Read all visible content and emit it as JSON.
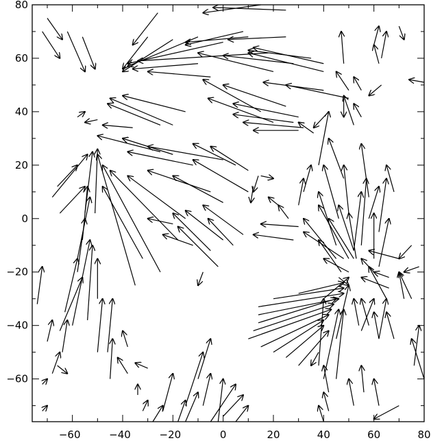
{
  "chart_data": {
    "type": "vector-field",
    "title": "",
    "xlabel": "",
    "ylabel": "",
    "xlim": [
      -76,
      80
    ],
    "ylim": [
      -76,
      80
    ],
    "xticks": [
      -60,
      -40,
      -20,
      0,
      20,
      40,
      60,
      80
    ],
    "yticks": [
      -60,
      -40,
      -20,
      0,
      20,
      40,
      60,
      80
    ],
    "xtick_labels": [
      "−60",
      "−40",
      "−20",
      "0",
      "20",
      "40",
      "60",
      "80"
    ],
    "ytick_labels": [
      "−60",
      "−40",
      "−20",
      "0",
      "20",
      "40",
      "60",
      "80"
    ],
    "grid": false,
    "line_color": "#000000",
    "background": "#ffffff",
    "vectors": [
      [
        -64,
        67,
        -70,
        75
      ],
      [
        -65,
        60,
        -72,
        70
      ],
      [
        -55,
        55,
        -62,
        70
      ],
      [
        -51,
        56,
        -56,
        68
      ],
      [
        -36,
        65,
        -26,
        77
      ],
      [
        -40,
        56,
        -30,
        68
      ],
      [
        -40,
        55,
        -20,
        67
      ],
      [
        -38,
        57,
        -10,
        68
      ],
      [
        -38,
        58,
        0,
        66
      ],
      [
        -34,
        59,
        18,
        62
      ],
      [
        -36,
        56,
        -10,
        58
      ],
      [
        -30,
        55,
        -5,
        53
      ],
      [
        -8,
        77,
        15,
        80
      ],
      [
        -4,
        79,
        25,
        78
      ],
      [
        -15,
        65,
        8,
        70
      ],
      [
        -15,
        66,
        10,
        68
      ],
      [
        2,
        67,
        25,
        68
      ],
      [
        10,
        62,
        40,
        55
      ],
      [
        0,
        61,
        28,
        58
      ],
      [
        -10,
        62,
        20,
        55
      ],
      [
        10,
        63,
        35,
        60
      ],
      [
        12,
        64,
        40,
        58
      ],
      [
        -8,
        52,
        15,
        40
      ],
      [
        -6,
        45,
        20,
        36
      ],
      [
        0,
        50,
        25,
        42
      ],
      [
        4,
        43,
        30,
        38
      ],
      [
        16,
        51,
        40,
        48
      ],
      [
        25,
        50,
        50,
        45
      ],
      [
        12,
        33,
        30,
        33
      ],
      [
        4,
        39,
        28,
        36
      ],
      [
        8,
        36,
        32,
        34
      ],
      [
        -45,
        45,
        -20,
        35
      ],
      [
        -40,
        46,
        -15,
        40
      ],
      [
        -46,
        43,
        -25,
        35
      ],
      [
        -48,
        35,
        -36,
        34
      ],
      [
        -55,
        36,
        -50,
        37
      ],
      [
        -50,
        31,
        -25,
        25
      ],
      [
        -40,
        30,
        -20,
        24
      ],
      [
        -38,
        25,
        -12,
        20
      ],
      [
        -30,
        27,
        0,
        22
      ],
      [
        -12,
        28,
        5,
        20
      ],
      [
        -5,
        27,
        10,
        18
      ],
      [
        -30,
        18,
        -5,
        10
      ],
      [
        -12,
        22,
        10,
        10
      ],
      [
        -20,
        16,
        0,
        6
      ],
      [
        -38,
        16,
        -15,
        0
      ],
      [
        -45,
        18,
        -18,
        -8
      ],
      [
        -48,
        20,
        -25,
        -20
      ],
      [
        -50,
        24,
        -35,
        -25
      ],
      [
        -48,
        12,
        -32,
        -15
      ],
      [
        -20,
        2,
        -5,
        -12
      ],
      [
        -18,
        -3,
        -2,
        -18
      ],
      [
        -15,
        3,
        0,
        -8
      ],
      [
        -8,
        5,
        8,
        -6
      ],
      [
        -55,
        12,
        -65,
        2
      ],
      [
        -54,
        24,
        -68,
        8
      ],
      [
        -58,
        20,
        -66,
        12
      ],
      [
        -52,
        25,
        -55,
        2
      ],
      [
        -54,
        12,
        -56,
        -8
      ],
      [
        -50,
        26,
        -51,
        2
      ],
      [
        -53,
        8,
        -58,
        -15
      ],
      [
        -53,
        -8,
        -60,
        -40
      ],
      [
        -55,
        0,
        -58,
        -20
      ],
      [
        -52,
        -10,
        -54,
        -38
      ],
      [
        -50,
        -15,
        -50,
        -30
      ],
      [
        -48,
        -30,
        -50,
        -50
      ],
      [
        -44,
        -30,
        -46,
        -50
      ],
      [
        -44,
        -45,
        -45,
        -60
      ],
      [
        -42,
        -52,
        -38,
        -58
      ],
      [
        -35,
        -54,
        -30,
        -56
      ],
      [
        -58,
        -15,
        -63,
        -35
      ],
      [
        -56,
        -22,
        -65,
        -42
      ],
      [
        -62,
        -38,
        -64,
        -50
      ],
      [
        -65,
        -50,
        -68,
        -58
      ],
      [
        -72,
        -18,
        -74,
        -32
      ],
      [
        -68,
        -38,
        -70,
        -46
      ],
      [
        -55,
        40,
        -58,
        38
      ],
      [
        30,
        36,
        36,
        32
      ],
      [
        36,
        34,
        42,
        40
      ],
      [
        42,
        40,
        38,
        20
      ],
      [
        48,
        46,
        52,
        35
      ],
      [
        52,
        43,
        55,
        38
      ],
      [
        58,
        46,
        63,
        50
      ],
      [
        60,
        65,
        62,
        58
      ],
      [
        65,
        70,
        63,
        60
      ],
      [
        47,
        70,
        48,
        58
      ],
      [
        62,
        72,
        60,
        65
      ],
      [
        72,
        67,
        70,
        72
      ],
      [
        74,
        52,
        80,
        51
      ],
      [
        52,
        53,
        55,
        48
      ],
      [
        45,
        55,
        50,
        48
      ],
      [
        48,
        38,
        48,
        45
      ],
      [
        55,
        10,
        52,
        -12
      ],
      [
        57,
        15,
        55,
        -10
      ],
      [
        62,
        12,
        58,
        0
      ],
      [
        65,
        15,
        62,
        -5
      ],
      [
        60,
        2,
        60,
        -15
      ],
      [
        66,
        0,
        62,
        -18
      ],
      [
        65,
        20,
        68,
        10
      ],
      [
        55,
        28,
        58,
        8
      ],
      [
        42,
        30,
        48,
        15
      ],
      [
        40,
        20,
        46,
        0
      ],
      [
        48,
        20,
        50,
        2
      ],
      [
        38,
        10,
        45,
        -10
      ],
      [
        32,
        15,
        30,
        5
      ],
      [
        35,
        20,
        32,
        10
      ],
      [
        32,
        -5,
        48,
        -15
      ],
      [
        32,
        0,
        45,
        -15
      ],
      [
        38,
        5,
        50,
        -15
      ],
      [
        40,
        -15,
        50,
        -20
      ],
      [
        42,
        0,
        52,
        -15
      ],
      [
        46,
        5,
        52,
        -12
      ],
      [
        50,
        2,
        53,
        -15
      ],
      [
        38,
        -8,
        47,
        -20
      ],
      [
        12,
        -6,
        28,
        -8
      ],
      [
        15,
        -2,
        30,
        -3
      ],
      [
        22,
        5,
        26,
        0
      ],
      [
        18,
        8,
        22,
        5
      ],
      [
        20,
        15,
        15,
        16
      ],
      [
        12,
        10,
        14,
        16
      ],
      [
        11,
        6,
        12,
        12
      ],
      [
        70,
        -15,
        75,
        -10
      ],
      [
        72,
        -20,
        78,
        -18
      ],
      [
        70,
        -20,
        75,
        -30
      ],
      [
        60,
        -20,
        66,
        -22
      ],
      [
        58,
        -18,
        65,
        -30
      ],
      [
        55,
        -22,
        66,
        -26
      ],
      [
        55,
        -15,
        60,
        -20
      ],
      [
        58,
        -12,
        70,
        -15
      ],
      [
        50,
        -25,
        46,
        -22
      ],
      [
        50,
        -22,
        40,
        -30
      ],
      [
        48,
        -24,
        30,
        -28
      ],
      [
        48,
        -26,
        20,
        -30
      ],
      [
        48,
        -28,
        14,
        -33
      ],
      [
        46,
        -30,
        14,
        -36
      ],
      [
        45,
        -30,
        14,
        -39
      ],
      [
        44,
        -32,
        12,
        -42
      ],
      [
        43,
        -34,
        10,
        -45
      ],
      [
        42,
        -36,
        15,
        -48
      ],
      [
        40,
        -38,
        20,
        -50
      ],
      [
        40,
        -40,
        25,
        -52
      ],
      [
        42,
        -42,
        30,
        -55
      ],
      [
        40,
        -30,
        38,
        -55
      ],
      [
        46,
        -34,
        40,
        -60
      ],
      [
        48,
        -34,
        45,
        -60
      ],
      [
        50,
        -25,
        45,
        -45
      ],
      [
        52,
        -30,
        54,
        -40
      ],
      [
        55,
        -30,
        58,
        -40
      ],
      [
        60,
        -35,
        62,
        -45
      ],
      [
        60,
        -30,
        55,
        -42
      ],
      [
        65,
        -30,
        62,
        -45
      ],
      [
        70,
        -20,
        72,
        -30
      ],
      [
        65,
        -35,
        68,
        -45
      ],
      [
        35,
        -55,
        38,
        -50
      ],
      [
        40,
        -55,
        42,
        -65
      ],
      [
        50,
        -60,
        52,
        -70
      ],
      [
        55,
        -55,
        56,
        -65
      ],
      [
        40,
        -65,
        42,
        -72
      ],
      [
        38,
        -70,
        40,
        -76
      ],
      [
        60,
        -60,
        62,
        -70
      ],
      [
        78,
        -40,
        76,
        -55
      ],
      [
        75,
        -45,
        80,
        -60
      ],
      [
        60,
        -75,
        70,
        -70
      ],
      [
        -8,
        -50,
        -15,
        -70
      ],
      [
        -5,
        -45,
        -10,
        -60
      ],
      [
        -10,
        -65,
        -15,
        -76
      ],
      [
        -5,
        -58,
        -8,
        -70
      ],
      [
        0,
        -60,
        -2,
        -76
      ],
      [
        5,
        -62,
        -5,
        -76
      ],
      [
        8,
        -66,
        0,
        -74
      ],
      [
        10,
        -70,
        5,
        -76
      ],
      [
        -15,
        -68,
        -18,
        -76
      ],
      [
        -20,
        -58,
        -24,
        -72
      ],
      [
        -24,
        -70,
        -28,
        -76
      ],
      [
        -30,
        -68,
        -32,
        -72
      ],
      [
        -34,
        -62,
        -34,
        -66
      ],
      [
        -62,
        -58,
        -66,
        -55
      ],
      [
        -70,
        -60,
        -72,
        -62
      ],
      [
        -70,
        -70,
        -72,
        -72
      ],
      [
        -10,
        -25,
        -8,
        -20
      ],
      [
        -40,
        -42,
        -38,
        -48
      ],
      [
        -30,
        0,
        -20,
        -2
      ],
      [
        -24,
        -6,
        -12,
        -10
      ],
      [
        -6,
        0,
        4,
        -10
      ]
    ]
  }
}
